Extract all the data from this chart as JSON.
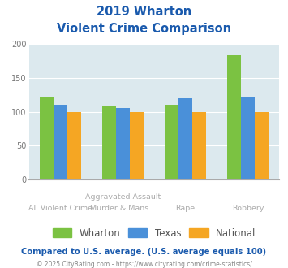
{
  "title_line1": "2019 Wharton",
  "title_line2": "Violent Crime Comparison",
  "top_labels": [
    "",
    "Aggravated Assault",
    "Rape",
    ""
  ],
  "bot_labels": [
    "All Violent Crime",
    "Murder & Mans...",
    "",
    "Robbery"
  ],
  "wharton": [
    123,
    108,
    110,
    184
  ],
  "texas": [
    111,
    106,
    120,
    123
  ],
  "national": [
    100,
    100,
    100,
    100
  ],
  "wharton_color": "#7bc242",
  "texas_color": "#4a90d9",
  "national_color": "#f5a623",
  "bg_color": "#dce9ee",
  "title_color": "#1a5aad",
  "ylim": [
    0,
    200
  ],
  "yticks": [
    0,
    50,
    100,
    150,
    200
  ],
  "footnote1": "Compared to U.S. average. (U.S. average equals 100)",
  "footnote2": "© 2025 CityRating.com - https://www.cityrating.com/crime-statistics/",
  "footnote1_color": "#1a5aad",
  "footnote2_color": "#888888",
  "footnote2_link_color": "#4a90d9",
  "legend_labels": [
    "Wharton",
    "Texas",
    "National"
  ],
  "bar_width": 0.22
}
